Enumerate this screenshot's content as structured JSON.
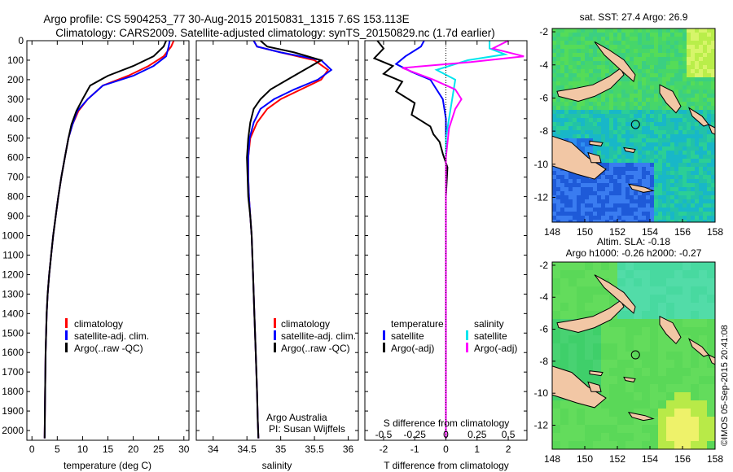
{
  "header": {
    "line1": "Argo profile: CS 5904253_77 30-Aug-2015 20150831_1315 7.6S 153.113E",
    "line2": "Climatology: CARS2009. Satellite-adjusted climatology: synTS_20150829.nc (1.7d earlier)"
  },
  "colors": {
    "climatology": "#ff0000",
    "satellite": "#0000ff",
    "argo": "#000000",
    "sat_salinity": "#00e5ee",
    "argo_salinity": "#ff00ff"
  },
  "depth_axis": {
    "ticks": [
      "0",
      "100",
      "200",
      "300",
      "400",
      "500",
      "600",
      "700",
      "800",
      "900",
      "1000",
      "1100",
      "1200",
      "1300",
      "1400",
      "1500",
      "1600",
      "1700",
      "1800",
      "1900",
      "2000"
    ]
  },
  "chart_data": [
    {
      "type": "line",
      "name": "temperature-profile",
      "xlabel": "temperature (deg C)",
      "xlim": [
        -1,
        31
      ],
      "xticks": [
        "0",
        "5",
        "10",
        "15",
        "20",
        "25",
        "30"
      ],
      "ylim": [
        2050,
        0
      ],
      "legend": [
        "climatology",
        "satellite-adj. clim.",
        "Argo(..raw -QC)"
      ],
      "series": [
        {
          "name": "climatology",
          "x": [
            28,
            27.5,
            26,
            23,
            19,
            14,
            11,
            9.2,
            8,
            7.2,
            6.5,
            5.8,
            5.2,
            4.7,
            4.2,
            3.8,
            3.4,
            3.1,
            2.9,
            2.7,
            2.6,
            2.5
          ],
          "y": [
            0,
            30,
            80,
            130,
            180,
            230,
            300,
            360,
            430,
            500,
            600,
            700,
            800,
            900,
            1000,
            1100,
            1200,
            1300,
            1400,
            1600,
            1800,
            2040
          ]
        },
        {
          "name": "satellite-adj. clim.",
          "x": [
            27.2,
            27,
            26.5,
            24,
            20,
            14,
            11,
            9,
            8,
            7.2,
            6.5,
            5.8,
            5.2,
            4.7,
            4.2,
            3.8,
            3.4,
            3.1,
            2.9,
            2.7,
            2.6,
            2.5
          ],
          "y": [
            0,
            30,
            80,
            130,
            180,
            230,
            300,
            360,
            430,
            500,
            600,
            700,
            800,
            900,
            1000,
            1100,
            1200,
            1300,
            1400,
            1600,
            1800,
            2040
          ]
        },
        {
          "name": "Argo(..raw -QC)",
          "x": [
            26.5,
            26,
            24,
            20,
            15,
            11.5,
            10,
            8.8,
            7.8,
            7.2,
            6.5,
            5.8,
            5.2,
            4.7,
            4.2,
            3.8,
            3.4,
            3.1,
            2.9,
            2.7,
            2.6,
            2.5
          ],
          "y": [
            0,
            30,
            80,
            130,
            180,
            230,
            300,
            360,
            430,
            500,
            600,
            700,
            800,
            900,
            1000,
            1100,
            1200,
            1300,
            1400,
            1600,
            1800,
            2040
          ]
        }
      ]
    },
    {
      "type": "line",
      "name": "salinity-profile",
      "xlabel": "salinity",
      "xlim": [
        33.75,
        36.15
      ],
      "xticks": [
        "34",
        "34.5",
        "35",
        "35.5",
        "36"
      ],
      "ylim": [
        2050,
        0
      ],
      "legend": [
        "climatology",
        "satellite-adj. clim.",
        "Argo(..raw -QC)"
      ],
      "annotation": [
        "Argo Australia",
        "PI: Susan Wijffels"
      ],
      "series": [
        {
          "name": "climatology",
          "x": [
            34.6,
            34.65,
            35,
            35.5,
            35.7,
            35.6,
            35.3,
            35,
            34.8,
            34.65,
            34.55,
            34.52,
            34.52,
            34.53,
            34.55,
            34.57,
            34.59,
            34.61,
            34.63,
            34.65,
            34.66,
            34.67
          ],
          "y": [
            0,
            30,
            60,
            100,
            150,
            200,
            250,
            300,
            350,
            420,
            500,
            600,
            700,
            800,
            900,
            1000,
            1200,
            1400,
            1600,
            1800,
            1950,
            2040
          ]
        },
        {
          "name": "satellite-adj. clim.",
          "x": [
            34.6,
            34.65,
            35,
            35.6,
            35.75,
            35.55,
            35.2,
            34.9,
            34.7,
            34.6,
            34.54,
            34.52,
            34.52,
            34.53,
            34.55,
            34.57,
            34.59,
            34.61,
            34.63,
            34.65,
            34.66,
            34.67
          ],
          "y": [
            0,
            30,
            60,
            100,
            150,
            200,
            250,
            300,
            350,
            420,
            500,
            600,
            700,
            800,
            900,
            1000,
            1200,
            1400,
            1600,
            1800,
            1950,
            2040
          ]
        },
        {
          "name": "Argo(..raw -QC)",
          "x": [
            34.7,
            34.8,
            35.2,
            35.6,
            35.35,
            35.1,
            34.85,
            34.7,
            34.6,
            34.55,
            34.52,
            34.5,
            34.51,
            34.52,
            34.55,
            34.57,
            34.59,
            34.61,
            34.63,
            34.65,
            34.66,
            34.67
          ],
          "y": [
            0,
            30,
            60,
            100,
            150,
            200,
            250,
            300,
            350,
            420,
            500,
            600,
            700,
            800,
            900,
            1000,
            1200,
            1400,
            1600,
            1800,
            1950,
            2040
          ]
        }
      ]
    },
    {
      "type": "line",
      "name": "difference-profile",
      "xlabel": "T difference from climatology",
      "xlabel_top": "S difference from climatology",
      "xlim": [
        -2.6,
        2.6
      ],
      "xticks": [
        "-2",
        "-1",
        "0",
        "1",
        "2"
      ],
      "xticks_top": [
        "-0.5",
        "-0.25",
        "0",
        "0.25",
        "0.5"
      ],
      "ylim": [
        2050,
        0
      ],
      "legend_left_title": "temperature",
      "legend_right_title": "salinity",
      "legend_left": [
        "satellite",
        "Argo(-adj)"
      ],
      "legend_right": [
        "satellite",
        "Argo(-adj)"
      ],
      "series": [
        {
          "name": "temperature satellite",
          "x": [
            -0.7,
            -0.8,
            -1.3,
            -1.6,
            -1.1,
            -0.5,
            -0.3,
            -0.1,
            0.0,
            0.0,
            0.0,
            0.0,
            0.0,
            0.0,
            0.0
          ],
          "y": [
            0,
            30,
            80,
            120,
            160,
            200,
            250,
            300,
            400,
            500,
            600,
            800,
            1000,
            1500,
            2040
          ]
        },
        {
          "name": "temperature Argo(-adj)",
          "x": [
            -2.2,
            -2.0,
            -2.3,
            -1.7,
            -2.0,
            -1.4,
            -1.6,
            -1.0,
            -1.1,
            -0.5,
            -0.4,
            -0.2,
            -0.1,
            0.05,
            0.0,
            0.0,
            0.0,
            0.0
          ],
          "y": [
            0,
            40,
            90,
            130,
            170,
            210,
            260,
            320,
            380,
            440,
            480,
            520,
            580,
            650,
            800,
            1000,
            1500,
            2040
          ]
        },
        {
          "name": "salinity satellite",
          "x": [
            1.4,
            1.4,
            1.9,
            0.7,
            -0.3,
            0.3,
            0.2,
            0.1,
            0.0,
            0.0,
            0.0,
            0.0
          ],
          "y": [
            0,
            40,
            70,
            100,
            150,
            200,
            300,
            400,
            500,
            800,
            1500,
            2040
          ]
        },
        {
          "name": "salinity Argo(-adj)",
          "x": [
            2.0,
            1.5,
            2.5,
            0.8,
            -1.4,
            -0.4,
            0.3,
            0.5,
            0.3,
            0.1,
            0.0,
            0.0,
            0.0
          ],
          "y": [
            0,
            40,
            80,
            110,
            140,
            200,
            250,
            300,
            350,
            450,
            600,
            1500,
            2040
          ]
        }
      ]
    },
    {
      "type": "heatmap",
      "name": "sst-map",
      "title": "sat. SST: 27.4  Argo: 26.9",
      "xlim": [
        148,
        158
      ],
      "ylim": [
        -13.5,
        -1.8
      ],
      "xticks": [
        "148",
        "150",
        "152",
        "154",
        "156",
        "158"
      ],
      "yticks": [
        "-2",
        "-4",
        "-6",
        "-8",
        "-10",
        "-12"
      ],
      "marker": {
        "lon": 153.113,
        "lat": -7.6
      }
    },
    {
      "type": "heatmap",
      "name": "sla-map",
      "title": "Altim. SLA: -0.18",
      "subtitle": "Argo h1000: -0.26  h2000: -0.27",
      "xlim": [
        148,
        158
      ],
      "ylim": [
        -13.5,
        -1.8
      ],
      "xticks": [
        "148",
        "150",
        "152",
        "154",
        "156",
        "158"
      ],
      "yticks": [
        "-2",
        "-4",
        "-6",
        "-8",
        "-10",
        "-12"
      ],
      "marker": {
        "lon": 153.113,
        "lat": -7.6
      }
    }
  ],
  "credit": "©IMOS 05-Sep-2015 20:41:08"
}
